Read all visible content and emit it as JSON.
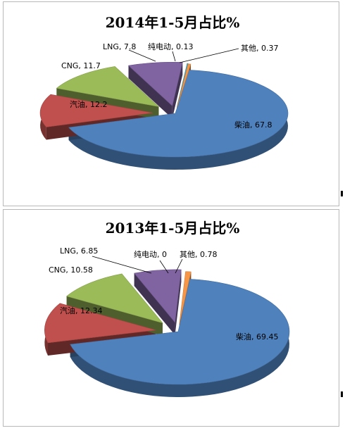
{
  "chart_data": [
    {
      "type": "pie",
      "title": "2014年1-5月占比%",
      "slices": [
        {
          "category": "柴油",
          "value": 67.8,
          "label": "柴油, 67.8",
          "color": "#4f81bd"
        },
        {
          "category": "汽油",
          "value": 12.2,
          "label": "汽油, 12.2",
          "color": "#c0504d"
        },
        {
          "category": "CNG",
          "value": 11.7,
          "label": "CNG, 11.7",
          "color": "#9bbb59"
        },
        {
          "category": "LNG",
          "value": 7.8,
          "label": "LNG, 7.8",
          "color": "#8064a2"
        },
        {
          "category": "纯电动",
          "value": 0.13,
          "label": "纯电动, 0.13",
          "color": "#4bacc6"
        },
        {
          "category": "其他",
          "value": 0.37,
          "label": "其他, 0.37",
          "color": "#f79646"
        }
      ],
      "style": "3D exploded pie",
      "legend": "none"
    },
    {
      "type": "pie",
      "title": "2013年1-5月占比%",
      "slices": [
        {
          "category": "柴油",
          "value": 69.45,
          "label": "柴油, 69.45",
          "color": "#4f81bd"
        },
        {
          "category": "汽油",
          "value": 12.34,
          "label": "汽油, 12.34",
          "color": "#c0504d"
        },
        {
          "category": "CNG",
          "value": 10.58,
          "label": "CNG, 10.58",
          "color": "#9bbb59"
        },
        {
          "category": "LNG",
          "value": 6.85,
          "label": "LNG, 6.85",
          "color": "#8064a2"
        },
        {
          "category": "纯电动",
          "value": 0,
          "label": "纯电动, 0",
          "color": "#4bacc6"
        },
        {
          "category": "其他",
          "value": 0.78,
          "label": "其他, 0.78",
          "color": "#f79646"
        }
      ],
      "style": "3D exploded pie",
      "legend": "none"
    }
  ]
}
